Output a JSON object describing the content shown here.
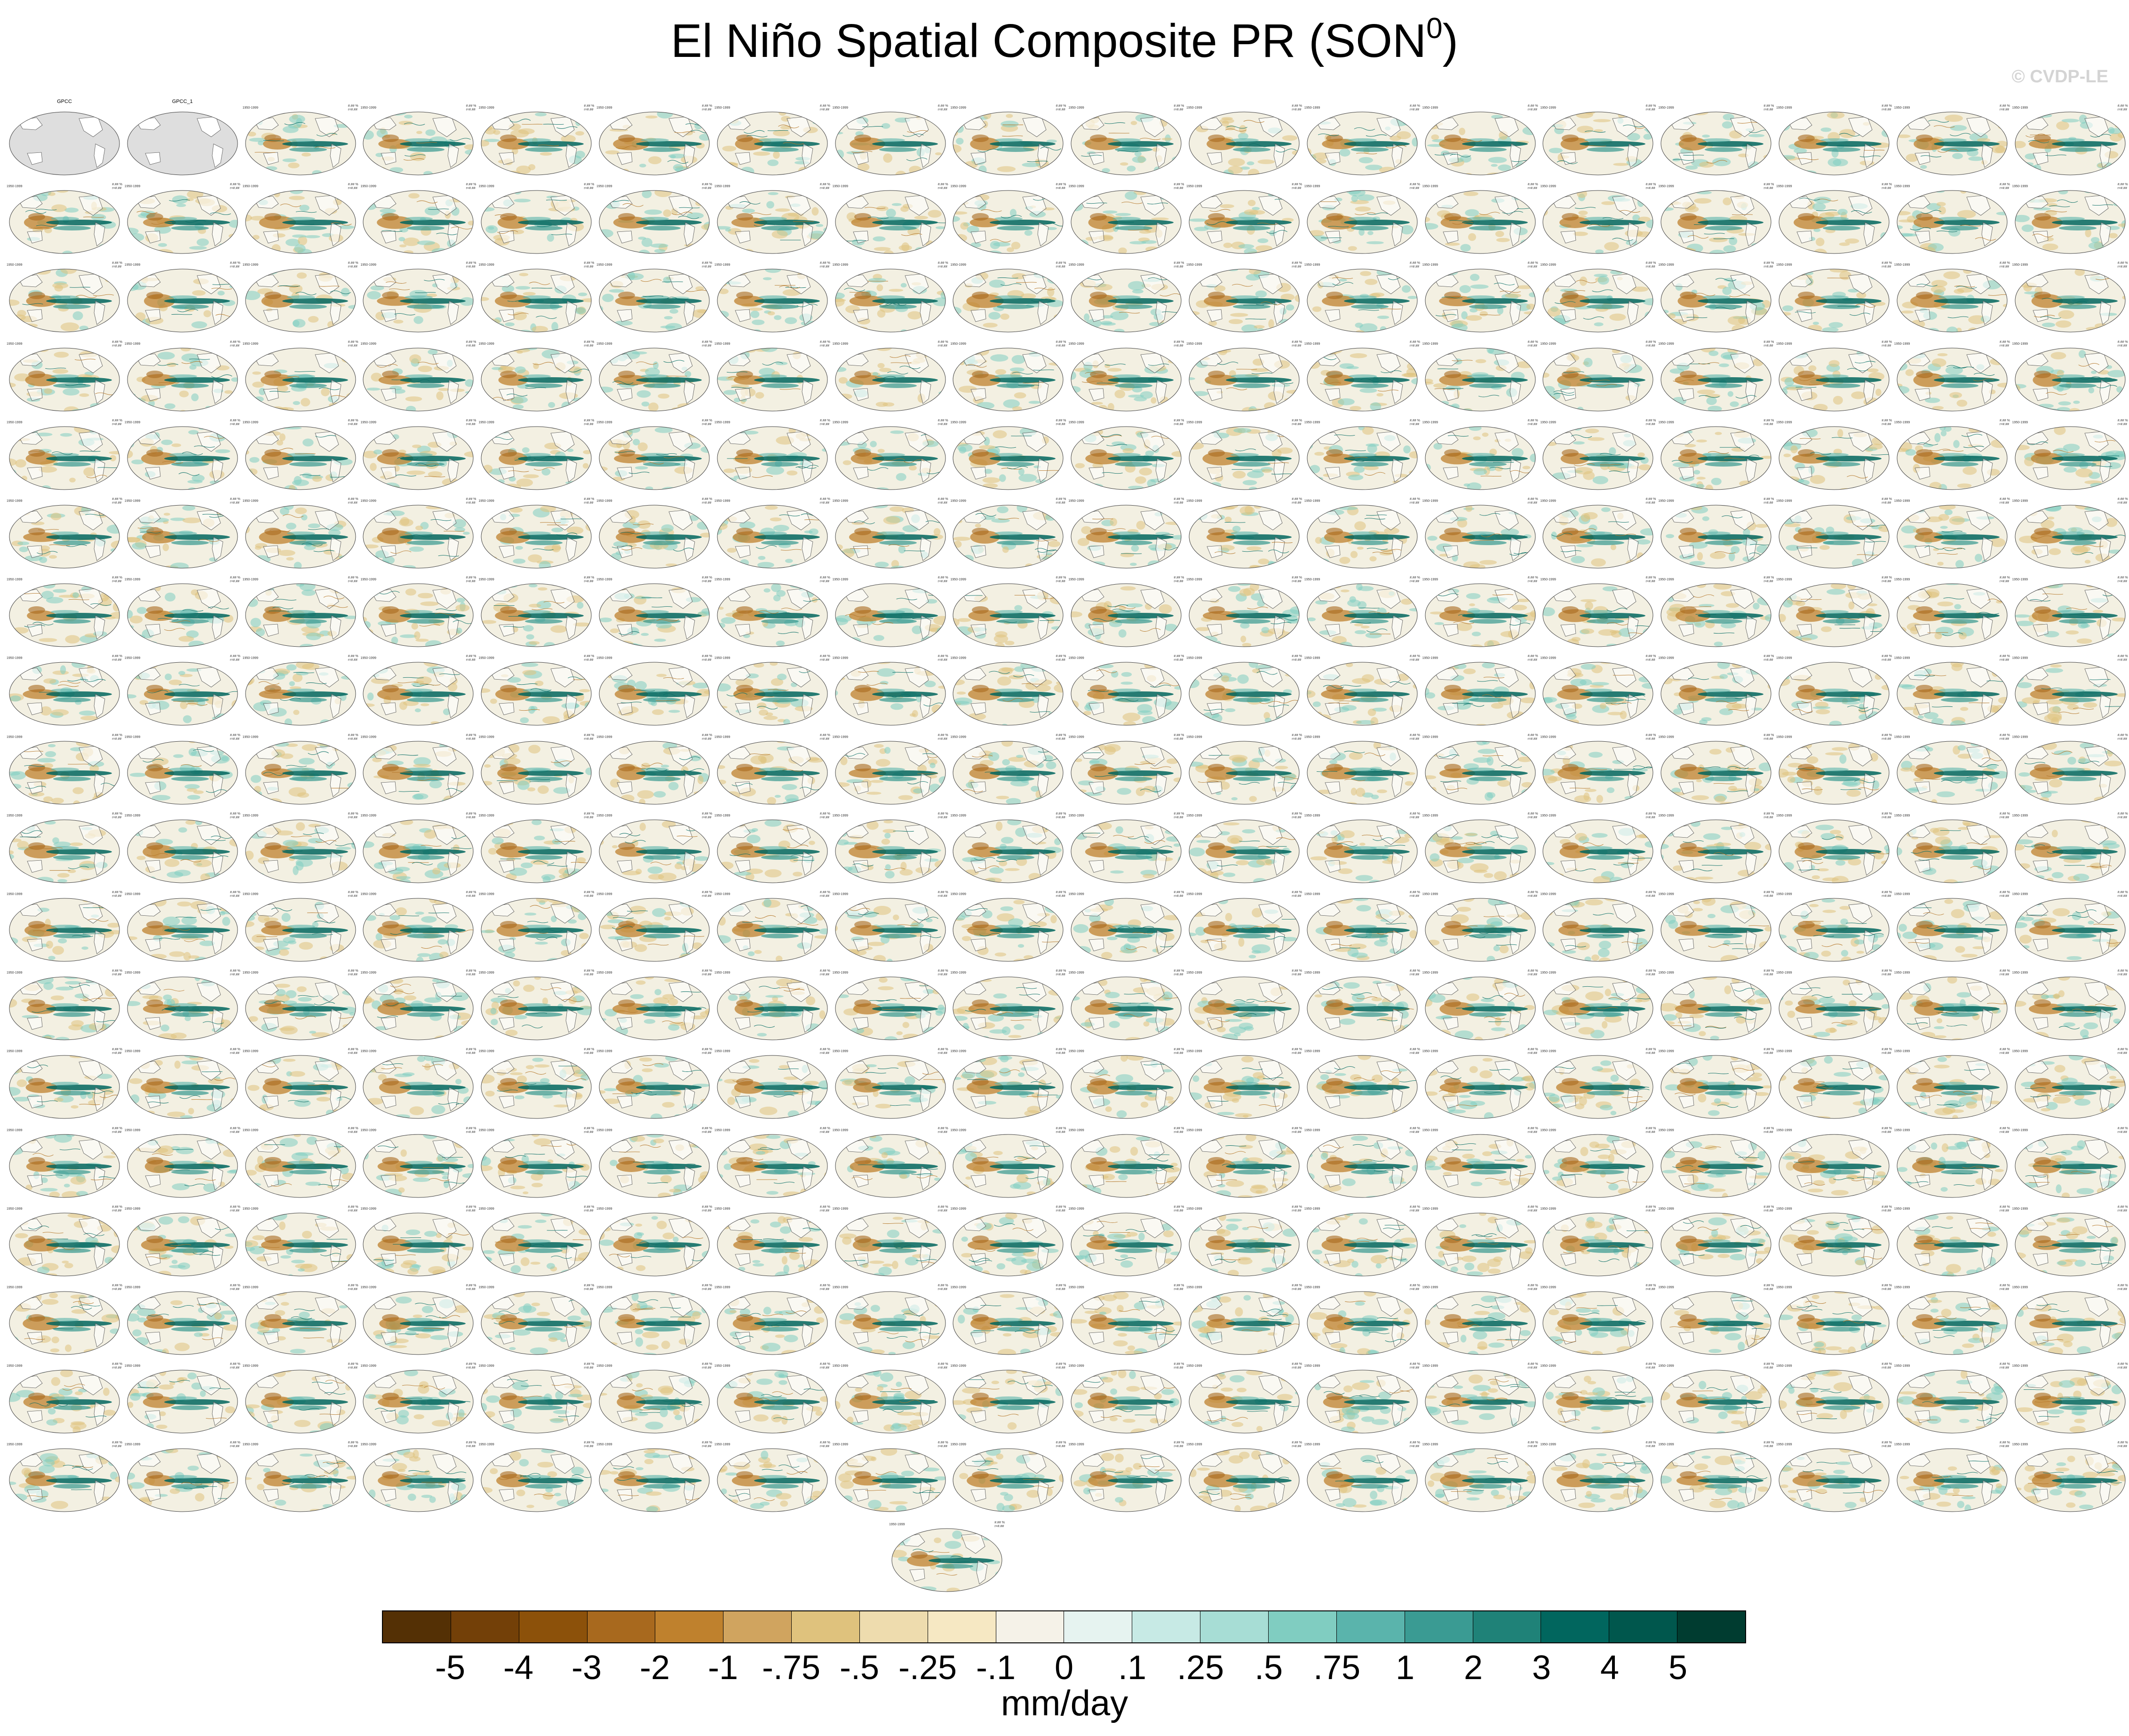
{
  "title": {
    "main": "El Niño Spatial Composite PR (SON",
    "sup": "0",
    "close": ")"
  },
  "watermark": "© CVDP-LE",
  "colorbar": {
    "units": "mm/day",
    "labels": [
      "-5",
      "-4",
      "-3",
      "-2",
      "-1",
      "-.75",
      "-.5",
      "-.25",
      "-.1",
      "0",
      ".1",
      ".25",
      ".5",
      ".75",
      "1",
      "2",
      "3",
      "4",
      "5"
    ],
    "colors": [
      "#543005",
      "#734008",
      "#8c510a",
      "#a8691e",
      "#bf812d",
      "#d0a45f",
      "#dfc27d",
      "#eedcae",
      "#f6e8c3",
      "#f5f2e8",
      "#e6f3f0",
      "#c7eae5",
      "#a7ddd5",
      "#80cdc1",
      "#5ab4ac",
      "#3a9b93",
      "#1f8278",
      "#01665e",
      "#00574d",
      "#003c30"
    ]
  },
  "chart_data": {
    "type": "heatmap",
    "title": "El Niño Spatial Composite PR (SON0)",
    "grid": {
      "rows": 18,
      "columns": 18,
      "extra_panels": 1
    },
    "panel_labels": {
      "row_1": [
        "GPCC",
        "GPCC_1"
      ]
    },
    "panel_text": {
      "years": "1950-1999",
      "percent_line_1": "#.## %",
      "percent_line_2": "r=#.##"
    },
    "caption_colors": {
      "obs": "#000000",
      "cesm2": "#1f6fb5",
      "cesm1": "#7b8ec2",
      "cnrm": "#8a8fe0",
      "gfdl": "#c0392b",
      "ipsl": "#8a6bd6",
      "miroc": "#d6b8e8"
    },
    "ocean_fill": "#f3f0e2",
    "land_fill": "#ffffff",
    "obs_land_fill": "#dedede",
    "contour_dry": "#b5782b",
    "contour_wet": "#0b6f66",
    "coast_color": "#555555",
    "legend_placement": "bottom"
  }
}
